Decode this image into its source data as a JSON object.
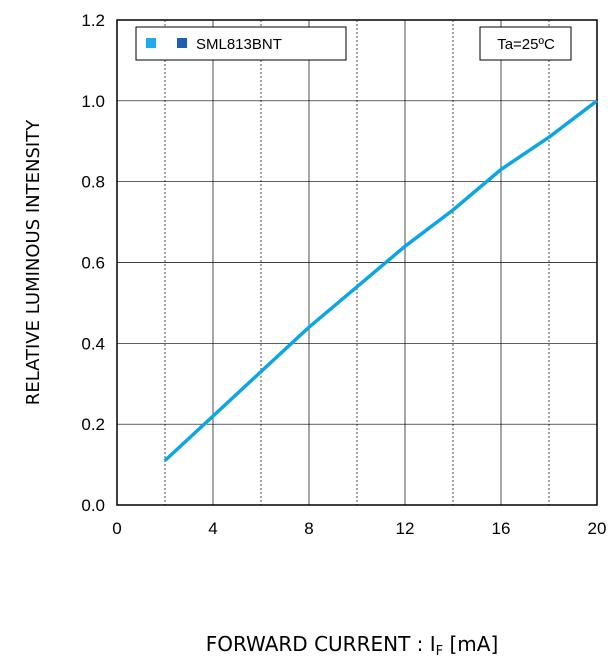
{
  "chart_data": {
    "type": "line",
    "title": "",
    "xlabel": "FORWARD CURRENT : I",
    "xlabel_sub": "F",
    "xlabel_unit": " [mA]",
    "ylabel": "RELATIVE LUMINOUS INTENSITY",
    "xlim": [
      0,
      20
    ],
    "ylim": [
      0,
      1.2
    ],
    "x_ticks": [
      0,
      4,
      8,
      12,
      16,
      20
    ],
    "x_tick_labels": [
      "0",
      "4",
      "8",
      "12",
      "16",
      "20"
    ],
    "y_ticks": [
      0,
      0.2,
      0.4,
      0.6,
      0.8,
      1.0,
      1.2
    ],
    "y_tick_labels": [
      "0.0",
      "0.2",
      "0.4",
      "0.6",
      "0.8",
      "1.0",
      "1.2"
    ],
    "grid": true,
    "legend_position": "top-left",
    "series": [
      {
        "name": "SML813BNT",
        "color": "#0ea5e3",
        "marker_colors": [
          "#1eaaf1",
          "#1f5fb3"
        ],
        "x": [
          2,
          4,
          6,
          8,
          10,
          12,
          14,
          16,
          18,
          20
        ],
        "y": [
          0.11,
          0.22,
          0.33,
          0.44,
          0.54,
          0.64,
          0.73,
          0.83,
          0.91,
          1.0
        ]
      }
    ],
    "annotations": [
      "Ta=25ºC"
    ]
  }
}
